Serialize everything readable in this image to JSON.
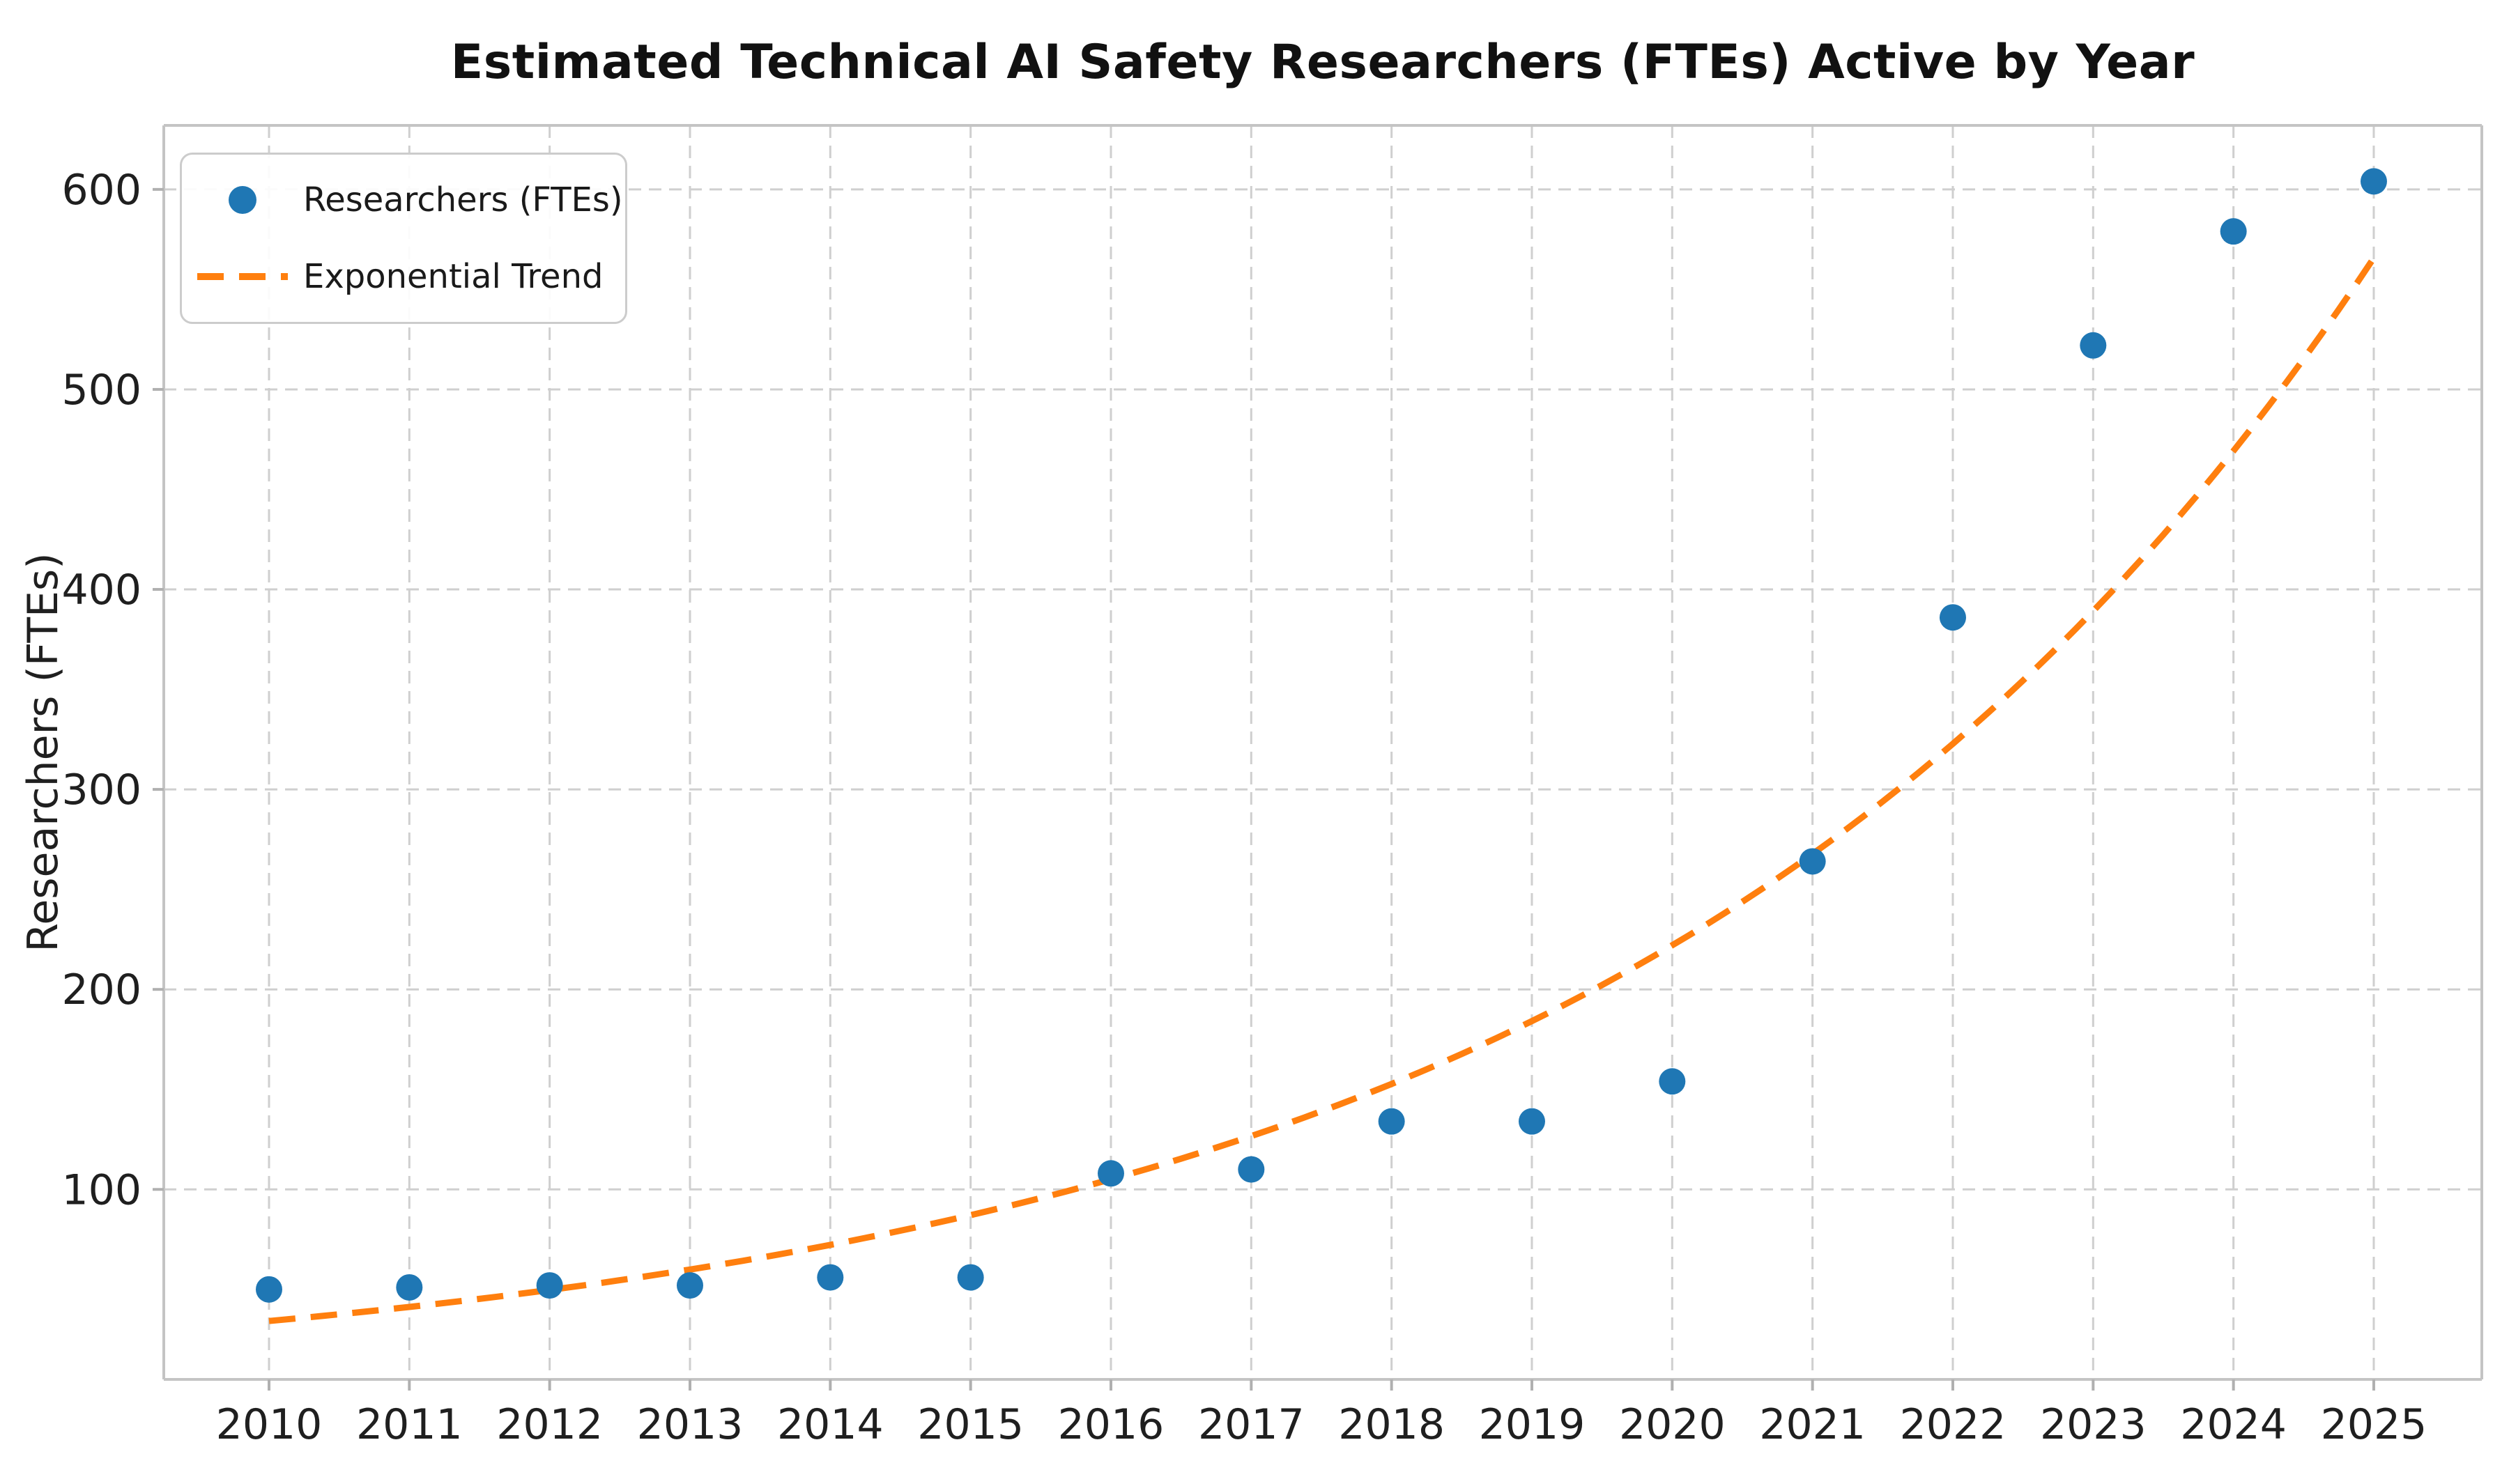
{
  "chart_data": {
    "type": "scatter",
    "title": "Estimated Technical AI Safety Researchers (FTEs) Active by Year",
    "ylabel": "Researchers (FTEs)",
    "xlabel": "",
    "x": [
      2010,
      2011,
      2012,
      2013,
      2014,
      2015,
      2016,
      2017,
      2018,
      2019,
      2020,
      2021,
      2022,
      2023,
      2024,
      2025
    ],
    "series": [
      {
        "name": "Researchers (FTEs)",
        "type": "scatter",
        "color": "#1f77b4",
        "values": [
          50,
          51,
          52,
          52,
          56,
          56,
          108,
          110,
          134,
          134,
          154,
          264,
          386,
          522,
          579,
          604
        ]
      },
      {
        "name": "Exponential Trend",
        "type": "line",
        "style": "dashed",
        "color": "#ff7f0e",
        "values": [
          34.2,
          41.2,
          49.7,
          60.0,
          72.3,
          87.2,
          105.2,
          126.8,
          152.9,
          184.4,
          222.3,
          268.1,
          323.2,
          389.8,
          470.0,
          566.7
        ]
      }
    ],
    "trend_fit": {
      "base_2010": 34.2,
      "annual_growth": 1.2057
    },
    "xticks": [
      "2010",
      "2011",
      "2012",
      "2013",
      "2014",
      "2015",
      "2016",
      "2017",
      "2018",
      "2019",
      "2020",
      "2021",
      "2022",
      "2023",
      "2024",
      "2025"
    ],
    "yticks": [
      100,
      200,
      300,
      400,
      500,
      600
    ],
    "xlim": [
      2009.25,
      2025.77
    ],
    "ylim": [
      5,
      632
    ],
    "grid": true,
    "legend_position": "upper left",
    "colors": {
      "points": "#1f77b4",
      "trend": "#ff7f0e",
      "grid": "#cfcfcf",
      "spine": "#c4c4c4",
      "tick": "#b0b0b0",
      "text": "#1f1f1f"
    }
  }
}
